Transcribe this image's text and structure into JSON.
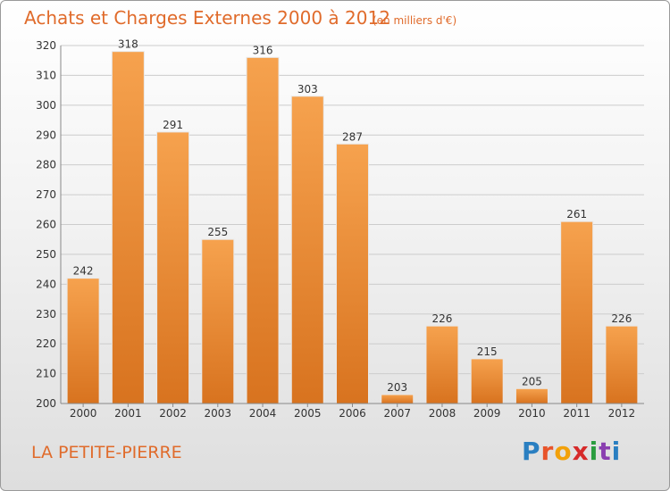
{
  "place_name": "LA PETITE-PIERRE",
  "logo": {
    "letters": [
      "P",
      "r",
      "o",
      "x",
      "i",
      "t",
      "i"
    ],
    "colors": [
      "#2a7fc1",
      "#e8542a",
      "#f2a10a",
      "#d62a2a",
      "#2a9d3f",
      "#8a3fb0",
      "#2a7fc1"
    ]
  },
  "colors": {
    "accent": "#e06b2b",
    "bar_top": "#f6a24e",
    "bar_bottom": "#d8731f",
    "grid": "#cccccc"
  },
  "chart_data": {
    "type": "bar",
    "title": "Achats et Charges Externes 2000 à 2012",
    "subtitle": "(en milliers d'€)",
    "xlabel": "",
    "ylabel": "",
    "categories": [
      "2000",
      "2001",
      "2002",
      "2003",
      "2004",
      "2005",
      "2006",
      "2007",
      "2008",
      "2009",
      "2010",
      "2011",
      "2012"
    ],
    "values": [
      242,
      318,
      291,
      255,
      316,
      303,
      287,
      203,
      226,
      215,
      205,
      261,
      226
    ],
    "ylim": [
      200,
      320
    ],
    "yticks": [
      200,
      210,
      220,
      230,
      240,
      250,
      260,
      270,
      280,
      290,
      300,
      310,
      320
    ],
    "grid": true,
    "data_labels": true
  }
}
